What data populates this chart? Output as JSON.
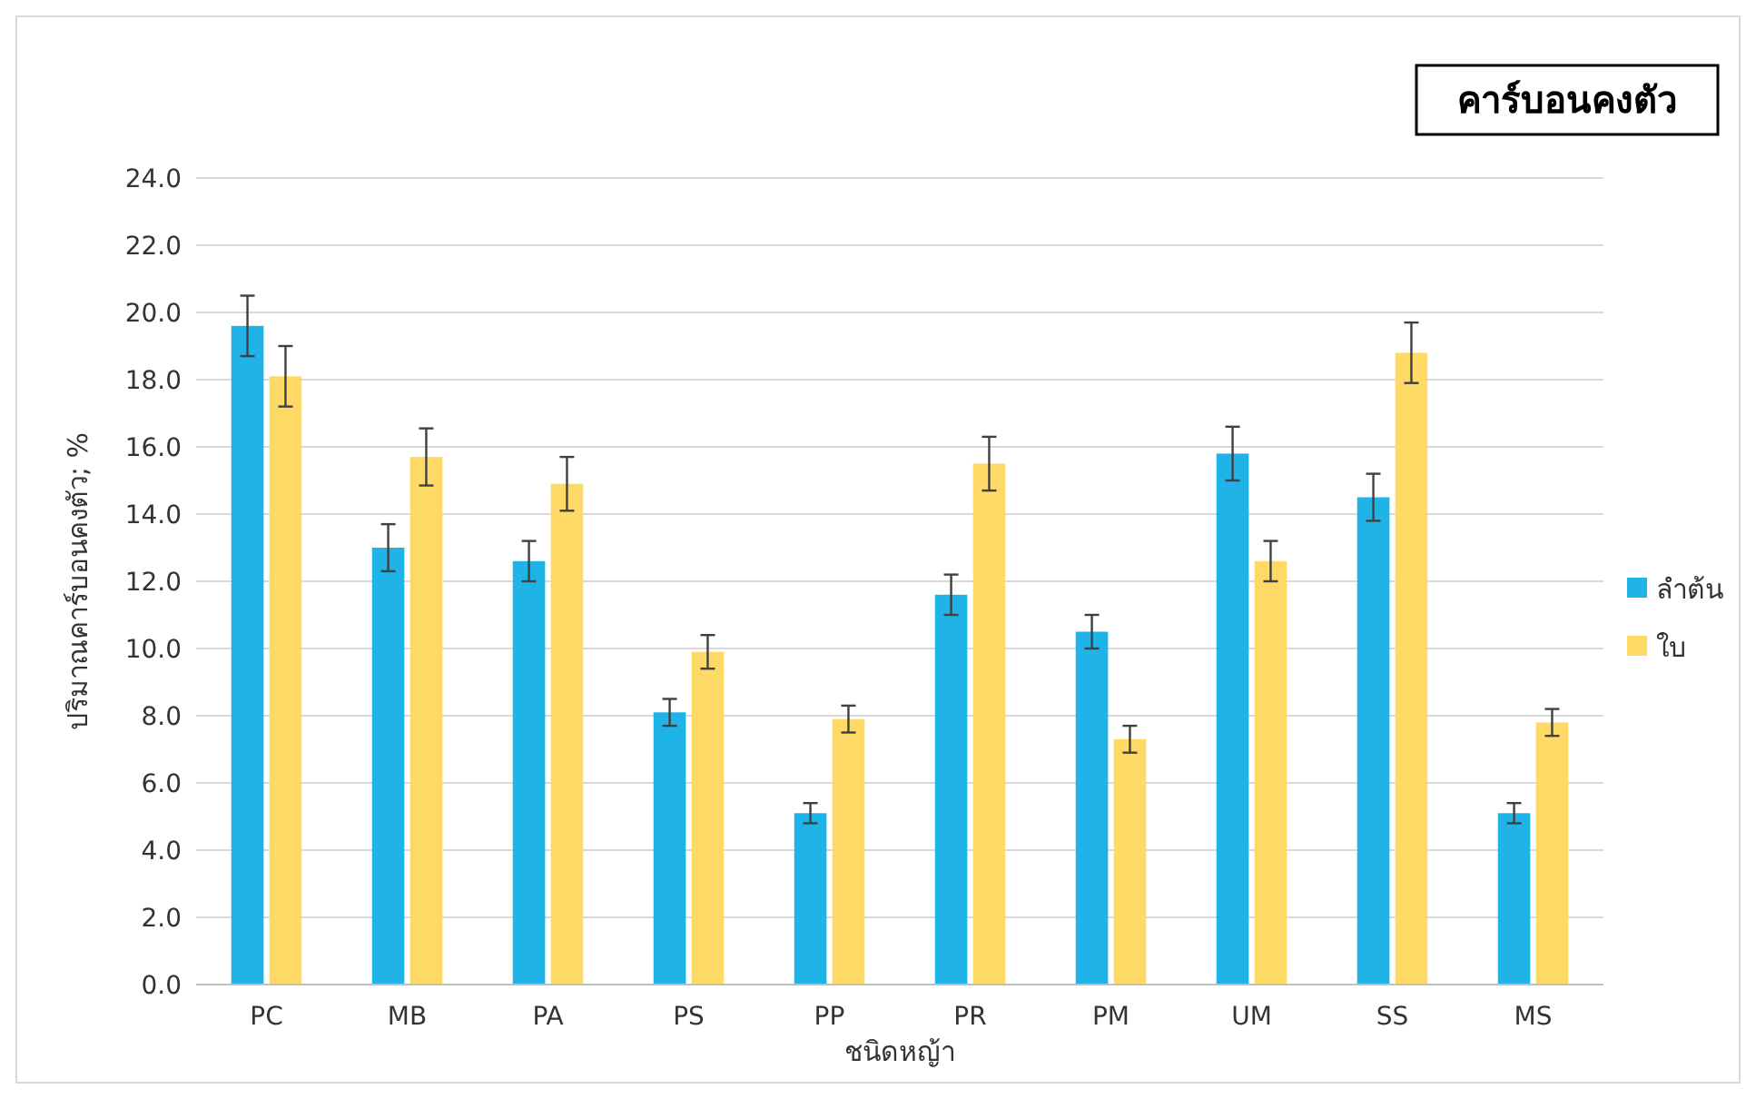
{
  "chart_data": {
    "type": "bar",
    "title": "คาร์บอนคงตัว",
    "xlabel": "ชนิดหญ้า",
    "ylabel": "ปริมาณคาร์บอนคงตัว; %",
    "categories": [
      "PC",
      "MB",
      "PA",
      "PS",
      "PP",
      "PR",
      "PM",
      "UM",
      "SS",
      "MS"
    ],
    "series": [
      {
        "name": "ลำต้น",
        "color": "#1fb3e8",
        "values": [
          19.6,
          13.0,
          12.6,
          8.1,
          5.1,
          11.6,
          10.5,
          15.8,
          14.5,
          5.1
        ],
        "errors": [
          0.9,
          0.7,
          0.6,
          0.4,
          0.3,
          0.6,
          0.5,
          0.8,
          0.7,
          0.3
        ]
      },
      {
        "name": "ใบ",
        "color": "#ffd966",
        "values": [
          18.1,
          15.7,
          14.9,
          9.9,
          7.9,
          15.5,
          7.3,
          12.6,
          18.8,
          7.8
        ],
        "errors": [
          0.9,
          0.85,
          0.8,
          0.5,
          0.4,
          0.8,
          0.4,
          0.6,
          0.9,
          0.4
        ]
      }
    ],
    "ylim": [
      0,
      24
    ],
    "yticks": [
      {
        "value": 0,
        "label": "0.0"
      },
      {
        "value": 2,
        "label": "2.0"
      },
      {
        "value": 4,
        "label": "4.0"
      },
      {
        "value": 6,
        "label": "6.0"
      },
      {
        "value": 8,
        "label": "8.0"
      },
      {
        "value": 10,
        "label": "10.0"
      },
      {
        "value": 12,
        "label": "12.0"
      },
      {
        "value": 14,
        "label": "14.0"
      },
      {
        "value": 16,
        "label": "16.0"
      },
      {
        "value": 18,
        "label": "18.0"
      },
      {
        "value": 20,
        "label": "20.0"
      },
      {
        "value": 22,
        "label": "22.0"
      },
      {
        "value": 24,
        "label": "24.0"
      }
    ],
    "grid": "y",
    "legend": "right"
  }
}
